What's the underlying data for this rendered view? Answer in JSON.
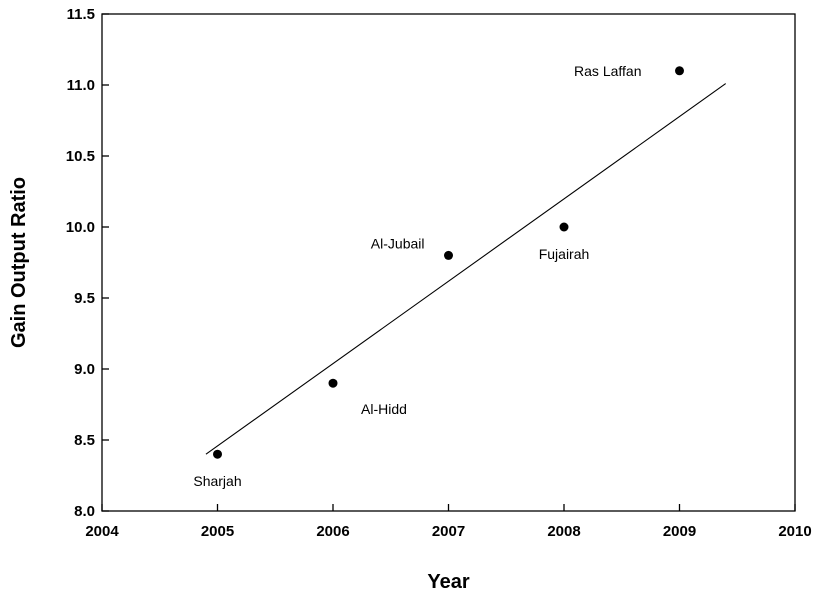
{
  "chart_data": {
    "type": "scatter",
    "title": "",
    "xlabel": "Year",
    "ylabel": "Gain Output Ratio",
    "xlim": [
      2004,
      2010
    ],
    "ylim": [
      8.0,
      11.5
    ],
    "xticks": [
      2004,
      2005,
      2006,
      2007,
      2008,
      2009,
      2010
    ],
    "xtick_labels": [
      "2004",
      "2005",
      "2006",
      "2007",
      "2008",
      "2009",
      "2010"
    ],
    "yticks": [
      8.0,
      8.5,
      9.0,
      9.5,
      10.0,
      10.5,
      11.0,
      11.5
    ],
    "ytick_labels": [
      "8.0",
      "8.5",
      "9.0",
      "9.5",
      "10.0",
      "10.5",
      "11.0",
      "11.5"
    ],
    "grid": false,
    "points": [
      {
        "x": 2005,
        "y": 8.4,
        "label": "Sharjah",
        "label_pos": "below"
      },
      {
        "x": 2006,
        "y": 8.9,
        "label": "Al-Hidd",
        "label_pos": "below-right"
      },
      {
        "x": 2007,
        "y": 9.8,
        "label": "Al-Jubail",
        "label_pos": "upper-left"
      },
      {
        "x": 2008,
        "y": 10.0,
        "label": "Fujairah",
        "label_pos": "below"
      },
      {
        "x": 2009,
        "y": 11.1,
        "label": "Ras Laffan",
        "label_pos": "left"
      }
    ],
    "trendline": {
      "x": [
        2004.9,
        2009.4
      ],
      "y": [
        8.4,
        11.01
      ]
    },
    "colors": {
      "points": "#000000",
      "line": "#000000",
      "axes": "#000000"
    }
  }
}
